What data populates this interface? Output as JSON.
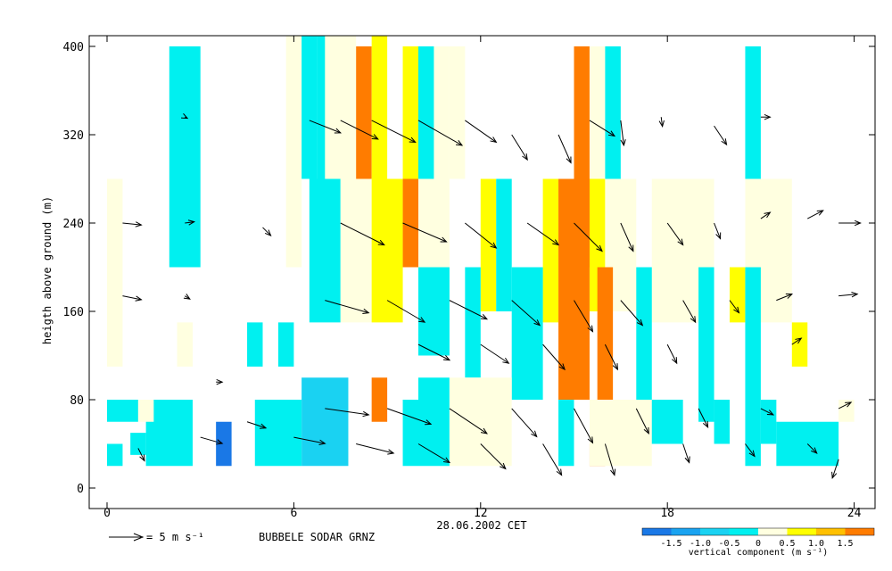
{
  "chart_data": {
    "type": "heatmap",
    "title": "",
    "xlabel": "28.06.2002 CET",
    "ylabel": "heigth above ground (m)",
    "x_ticks": [
      0,
      6,
      12,
      18,
      24
    ],
    "y_ticks": [
      0,
      80,
      160,
      240,
      320,
      400
    ],
    "xlim": [
      -0.5,
      24.5
    ],
    "ylim": [
      -10,
      410
    ],
    "grid": false,
    "scale_arrow_label": "= 5 m s⁻¹",
    "station_label": "BUBBELE SODAR GRNZ",
    "colorbar": {
      "label": "vertical component (m s⁻¹)",
      "tick_labels": [
        "-1.5",
        "-1.0",
        "-0.5",
        "0",
        "0.5",
        "1.0",
        "1.5"
      ],
      "bins": [
        -2.0,
        -1.5,
        -1.0,
        -0.5,
        0,
        0.5,
        1.0,
        1.5,
        2.0
      ],
      "colors": [
        "#1a78e6",
        "#1aa3f0",
        "#1ad2f2",
        "#00f0f0",
        "#ffffe0",
        "#ffff00",
        "#ffc000",
        "#ff7c00"
      ]
    },
    "cell_layers": [
      {
        "name": "top",
        "y0": 280,
        "y1": 410,
        "cells": [
          {
            "t": 2.5,
            "w": 1,
            "y0": 280,
            "y1": 410,
            "v": 0
          }
        ]
      }
    ],
    "cells": [
      {
        "t": 2.5,
        "w": 1.0,
        "y0": 200,
        "y1": 400,
        "v": -0.3
      },
      {
        "t": 6.0,
        "w": 0.5,
        "y0": 200,
        "y1": 410,
        "v": 0.2
      },
      {
        "t": 6.5,
        "w": 0.5,
        "y0": 280,
        "y1": 410,
        "v": -0.3
      },
      {
        "t": 7.0,
        "w": 0.5,
        "y0": 280,
        "y1": 410,
        "v": -0.3
      },
      {
        "t": 7.5,
        "w": 1.0,
        "y0": 280,
        "y1": 410,
        "v": 0.2
      },
      {
        "t": 8.25,
        "w": 0.5,
        "y0": 280,
        "y1": 400,
        "v": 1.8
      },
      {
        "t": 8.75,
        "w": 0.5,
        "y0": 280,
        "y1": 410,
        "v": 0.7
      },
      {
        "t": 9.75,
        "w": 0.5,
        "y0": 280,
        "y1": 400,
        "v": 0.7
      },
      {
        "t": 10.25,
        "w": 0.5,
        "y0": 280,
        "y1": 400,
        "v": -0.3
      },
      {
        "t": 10.75,
        "w": 0.5,
        "y0": 280,
        "y1": 400,
        "v": 0.2
      },
      {
        "t": 11.25,
        "w": 0.5,
        "y0": 280,
        "y1": 400,
        "v": 0.2
      },
      {
        "t": 15.25,
        "w": 0.5,
        "y0": 200,
        "y1": 400,
        "v": 1.8
      },
      {
        "t": 15.75,
        "w": 0.5,
        "y0": 280,
        "y1": 400,
        "v": 0.2
      },
      {
        "t": 16.25,
        "w": 0.5,
        "y0": 280,
        "y1": 400,
        "v": -0.3
      },
      {
        "t": 20.75,
        "w": 0.5,
        "y0": 280,
        "y1": 400,
        "v": -0.3
      },
      {
        "t": 0.25,
        "w": 0.5,
        "y0": 110,
        "y1": 280,
        "v": 0.2
      },
      {
        "t": 7.0,
        "w": 1.0,
        "y0": 150,
        "y1": 280,
        "v": -0.3
      },
      {
        "t": 8.0,
        "w": 1.0,
        "y0": 150,
        "y1": 280,
        "v": 0.2
      },
      {
        "t": 9.0,
        "w": 1.0,
        "y0": 150,
        "y1": 280,
        "v": 0.7
      },
      {
        "t": 9.75,
        "w": 0.5,
        "y0": 200,
        "y1": 280,
        "v": 1.8
      },
      {
        "t": 10.5,
        "w": 1.0,
        "y0": 150,
        "y1": 280,
        "v": 0.2
      },
      {
        "t": 12.25,
        "w": 0.5,
        "y0": 160,
        "y1": 280,
        "v": 0.7
      },
      {
        "t": 12.75,
        "w": 0.5,
        "y0": 160,
        "y1": 280,
        "v": -0.3
      },
      {
        "t": 14.25,
        "w": 0.5,
        "y0": 150,
        "y1": 280,
        "v": 0.7
      },
      {
        "t": 14.75,
        "w": 0.5,
        "y0": 80,
        "y1": 280,
        "v": 1.8
      },
      {
        "t": 15.25,
        "w": 0.5,
        "y0": 80,
        "y1": 280,
        "v": 1.8
      },
      {
        "t": 15.75,
        "w": 0.5,
        "y0": 160,
        "y1": 280,
        "v": 0.7
      },
      {
        "t": 16.5,
        "w": 1.0,
        "y0": 160,
        "y1": 280,
        "v": 0.2
      },
      {
        "t": 18.5,
        "w": 2.0,
        "y0": 150,
        "y1": 280,
        "v": 0.2
      },
      {
        "t": 20.25,
        "w": 0.5,
        "y0": 150,
        "y1": 200,
        "v": 0.7
      },
      {
        "t": 21.25,
        "w": 1.5,
        "y0": 150,
        "y1": 280,
        "v": 0.2
      },
      {
        "t": 10.5,
        "w": 1.0,
        "y0": 120,
        "y1": 200,
        "v": -0.3
      },
      {
        "t": 11.75,
        "w": 0.5,
        "y0": 100,
        "y1": 200,
        "v": -0.3
      },
      {
        "t": 13.5,
        "w": 1.0,
        "y0": 80,
        "y1": 200,
        "v": -0.3
      },
      {
        "t": 16.0,
        "w": 0.5,
        "y0": 80,
        "y1": 200,
        "v": 1.8
      },
      {
        "t": 17.25,
        "w": 0.5,
        "y0": 80,
        "y1": 200,
        "v": -0.3
      },
      {
        "t": 19.25,
        "w": 0.5,
        "y0": 60,
        "y1": 200,
        "v": -0.3
      },
      {
        "t": 20.75,
        "w": 0.5,
        "y0": 20,
        "y1": 200,
        "v": -0.3
      },
      {
        "t": 22.25,
        "w": 0.5,
        "y0": 110,
        "y1": 150,
        "v": 0.7
      },
      {
        "t": 4.75,
        "w": 0.5,
        "y0": 110,
        "y1": 150,
        "v": -0.3
      },
      {
        "t": 5.75,
        "w": 0.5,
        "y0": 110,
        "y1": 150,
        "v": -0.3
      },
      {
        "t": 2.5,
        "w": 0.5,
        "y0": 110,
        "y1": 150,
        "v": 0.2
      },
      {
        "t": 0.5,
        "w": 1.0,
        "y0": 60,
        "y1": 80,
        "v": -0.3
      },
      {
        "t": 2.0,
        "w": 1.5,
        "y0": 20,
        "y1": 80,
        "v": -0.3
      },
      {
        "t": 3.75,
        "w": 0.5,
        "y0": 20,
        "y1": 60,
        "v": -1.7
      },
      {
        "t": 5.5,
        "w": 1.5,
        "y0": 20,
        "y1": 80,
        "v": -0.3
      },
      {
        "t": 7.0,
        "w": 1.5,
        "y0": 20,
        "y1": 100,
        "v": -0.8
      },
      {
        "t": 8.75,
        "w": 0.5,
        "y0": 60,
        "y1": 100,
        "v": 1.8
      },
      {
        "t": 9.75,
        "w": 0.5,
        "y0": 20,
        "y1": 80,
        "v": -0.3
      },
      {
        "t": 10.5,
        "w": 1.0,
        "y0": 20,
        "y1": 100,
        "v": -0.3
      },
      {
        "t": 12.0,
        "w": 2.0,
        "y0": 20,
        "y1": 100,
        "v": 0.2
      },
      {
        "t": 14.75,
        "w": 0.5,
        "y0": 20,
        "y1": 80,
        "v": -0.3
      },
      {
        "t": 15.75,
        "w": 0.5,
        "y0": 20,
        "y1": 40,
        "v": 1.8
      },
      {
        "t": 16.5,
        "w": 2.0,
        "y0": 20,
        "y1": 80,
        "v": 0.2
      },
      {
        "t": 18.0,
        "w": 1.0,
        "y0": 40,
        "y1": 80,
        "v": -0.3
      },
      {
        "t": 19.75,
        "w": 0.5,
        "y0": 40,
        "y1": 80,
        "v": -0.3
      },
      {
        "t": 21.25,
        "w": 0.5,
        "y0": 40,
        "y1": 80,
        "v": -0.3
      },
      {
        "t": 22.5,
        "w": 2.0,
        "y0": 20,
        "y1": 60,
        "v": -0.3
      },
      {
        "t": 23.75,
        "w": 0.5,
        "y0": 60,
        "y1": 80,
        "v": 0.2
      },
      {
        "t": 1.25,
        "w": 0.5,
        "y0": 60,
        "y1": 80,
        "v": 0.2
      },
      {
        "t": 0.25,
        "w": 0.5,
        "y0": 20,
        "y1": 40,
        "v": -0.3
      },
      {
        "t": 1.0,
        "w": 0.5,
        "y0": 30,
        "y1": 50,
        "v": -0.3
      }
    ],
    "vectors": [
      {
        "t": 0.5,
        "z": 240,
        "u": 3.0,
        "v": -0.3
      },
      {
        "t": 0.5,
        "z": 174,
        "u": 3.0,
        "v": -0.6
      },
      {
        "t": 2.5,
        "z": 336,
        "u": 0.4,
        "v": -0.2
      },
      {
        "t": 2.5,
        "z": 240,
        "u": 1.5,
        "v": 0.2
      },
      {
        "t": 2.5,
        "z": 174,
        "u": 0.8,
        "v": -0.5
      },
      {
        "t": 3.5,
        "z": 96,
        "u": 1.0,
        "v": 0.0
      },
      {
        "t": 5.0,
        "z": 236,
        "u": 1.3,
        "v": -1.3
      },
      {
        "t": 6.5,
        "z": 333,
        "u": 5.0,
        "v": -2.0
      },
      {
        "t": 7.5,
        "z": 333,
        "u": 6.0,
        "v": -3.0
      },
      {
        "t": 8.5,
        "z": 333,
        "u": 7.0,
        "v": -3.5
      },
      {
        "t": 10.0,
        "z": 333,
        "u": 7.0,
        "v": -4.0
      },
      {
        "t": 11.5,
        "z": 333,
        "u": 5.0,
        "v": -3.5
      },
      {
        "t": 13.0,
        "z": 320,
        "u": 2.5,
        "v": -4.0
      },
      {
        "t": 14.5,
        "z": 320,
        "u": 2.0,
        "v": -4.5
      },
      {
        "t": 15.5,
        "z": 333,
        "u": 4.0,
        "v": -2.5
      },
      {
        "t": 16.5,
        "z": 333,
        "u": 0.5,
        "v": -4.0
      },
      {
        "t": 17.8,
        "z": 336,
        "u": 0.2,
        "v": -1.5
      },
      {
        "t": 19.5,
        "z": 328,
        "u": 2.0,
        "v": -3.0
      },
      {
        "t": 21.0,
        "z": 336,
        "u": 1.5,
        "v": 0.0
      },
      {
        "t": 7.5,
        "z": 240,
        "u": 7.0,
        "v": -3.5
      },
      {
        "t": 9.5,
        "z": 240,
        "u": 7.0,
        "v": -3.0
      },
      {
        "t": 11.5,
        "z": 240,
        "u": 5.0,
        "v": -4.0
      },
      {
        "t": 13.5,
        "z": 240,
        "u": 5.0,
        "v": -3.5
      },
      {
        "t": 15.0,
        "z": 240,
        "u": 4.5,
        "v": -4.5
      },
      {
        "t": 16.5,
        "z": 240,
        "u": 2.0,
        "v": -4.5
      },
      {
        "t": 18.0,
        "z": 240,
        "u": 2.5,
        "v": -3.5
      },
      {
        "t": 19.5,
        "z": 240,
        "u": 1.0,
        "v": -2.5
      },
      {
        "t": 21.0,
        "z": 244,
        "u": 1.5,
        "v": 1.0
      },
      {
        "t": 22.5,
        "z": 244,
        "u": 2.5,
        "v": 1.3
      },
      {
        "t": 23.5,
        "z": 240,
        "u": 3.5,
        "v": 0.0
      },
      {
        "t": 7.0,
        "z": 170,
        "u": 7.0,
        "v": -2.0
      },
      {
        "t": 9.0,
        "z": 170,
        "u": 6.0,
        "v": -3.5
      },
      {
        "t": 11.0,
        "z": 170,
        "u": 6.0,
        "v": -3.0
      },
      {
        "t": 13.0,
        "z": 170,
        "u": 4.5,
        "v": -4.0
      },
      {
        "t": 15.0,
        "z": 170,
        "u": 3.0,
        "v": -5.0
      },
      {
        "t": 16.5,
        "z": 170,
        "u": 3.5,
        "v": -4.0
      },
      {
        "t": 18.5,
        "z": 170,
        "u": 2.0,
        "v": -3.5
      },
      {
        "t": 20.0,
        "z": 170,
        "u": 1.5,
        "v": -2.0
      },
      {
        "t": 21.5,
        "z": 170,
        "u": 2.5,
        "v": 1.0
      },
      {
        "t": 23.5,
        "z": 174,
        "u": 3.0,
        "v": 0.3
      },
      {
        "t": 10.0,
        "z": 130,
        "u": 5.0,
        "v": -2.5
      },
      {
        "t": 12.0,
        "z": 130,
        "u": 4.5,
        "v": -3.0
      },
      {
        "t": 14.0,
        "z": 130,
        "u": 3.5,
        "v": -4.0
      },
      {
        "t": 16.0,
        "z": 130,
        "u": 2.0,
        "v": -4.0
      },
      {
        "t": 18.0,
        "z": 130,
        "u": 1.5,
        "v": -3.0
      },
      {
        "t": 22.0,
        "z": 130,
        "u": 1.5,
        "v": 1.0
      },
      {
        "t": 7.0,
        "z": 72,
        "u": 7.0,
        "v": -1.0
      },
      {
        "t": 9.0,
        "z": 72,
        "u": 7.0,
        "v": -2.5
      },
      {
        "t": 11.0,
        "z": 72,
        "u": 6.0,
        "v": -4.0
      },
      {
        "t": 13.0,
        "z": 72,
        "u": 4.0,
        "v": -4.5
      },
      {
        "t": 15.0,
        "z": 72,
        "u": 3.0,
        "v": -5.5
      },
      {
        "t": 17.0,
        "z": 72,
        "u": 2.0,
        "v": -4.0
      },
      {
        "t": 19.0,
        "z": 72,
        "u": 1.5,
        "v": -3.0
      },
      {
        "t": 21.0,
        "z": 72,
        "u": 2.0,
        "v": -1.0
      },
      {
        "t": 23.5,
        "z": 72,
        "u": 2.0,
        "v": 1.0
      },
      {
        "t": 4.5,
        "z": 60,
        "u": 3.0,
        "v": -1.0
      },
      {
        "t": 6.0,
        "z": 46,
        "u": 5.0,
        "v": -1.0
      },
      {
        "t": 8.0,
        "z": 40,
        "u": 6.0,
        "v": -1.5
      },
      {
        "t": 10.0,
        "z": 40,
        "u": 5.0,
        "v": -3.0
      },
      {
        "t": 12.0,
        "z": 40,
        "u": 4.0,
        "v": -4.0
      },
      {
        "t": 14.0,
        "z": 40,
        "u": 3.0,
        "v": -5.0
      },
      {
        "t": 16.0,
        "z": 40,
        "u": 1.5,
        "v": -5.0
      },
      {
        "t": 18.5,
        "z": 40,
        "u": 1.0,
        "v": -3.0
      },
      {
        "t": 20.5,
        "z": 40,
        "u": 1.5,
        "v": -2.0
      },
      {
        "t": 22.5,
        "z": 40,
        "u": 1.5,
        "v": -1.5
      },
      {
        "t": 23.5,
        "z": 26,
        "u": -1.0,
        "v": -3.0
      },
      {
        "t": 3.0,
        "z": 46,
        "u": 3.5,
        "v": -1.0
      },
      {
        "t": 1.0,
        "z": 36,
        "u": 1.0,
        "v": -2.0
      }
    ]
  }
}
